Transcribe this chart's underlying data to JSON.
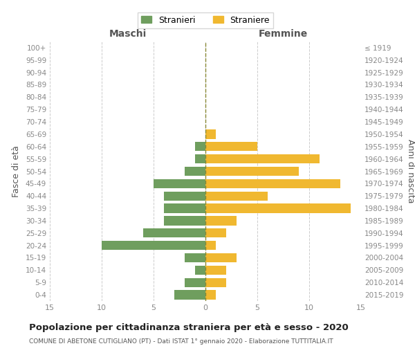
{
  "age_groups": [
    "0-4",
    "5-9",
    "10-14",
    "15-19",
    "20-24",
    "25-29",
    "30-34",
    "35-39",
    "40-44",
    "45-49",
    "50-54",
    "55-59",
    "60-64",
    "65-69",
    "70-74",
    "75-79",
    "80-84",
    "85-89",
    "90-94",
    "95-99",
    "100+"
  ],
  "birth_years": [
    "2015-2019",
    "2010-2014",
    "2005-2009",
    "2000-2004",
    "1995-1999",
    "1990-1994",
    "1985-1989",
    "1980-1984",
    "1975-1979",
    "1970-1974",
    "1965-1969",
    "1960-1964",
    "1955-1959",
    "1950-1954",
    "1945-1949",
    "1940-1944",
    "1935-1939",
    "1930-1934",
    "1925-1929",
    "1920-1924",
    "≤ 1919"
  ],
  "maschi": [
    3,
    2,
    1,
    2,
    10,
    6,
    4,
    4,
    4,
    5,
    2,
    1,
    1,
    0,
    0,
    0,
    0,
    0,
    0,
    0,
    0
  ],
  "femmine": [
    1,
    2,
    2,
    3,
    1,
    2,
    3,
    14,
    6,
    13,
    9,
    11,
    5,
    1,
    0,
    0,
    0,
    0,
    0,
    0,
    0
  ],
  "maschi_color": "#6f9e5e",
  "femmine_color": "#f0b830",
  "title": "Popolazione per cittadinanza straniera per età e sesso - 2020",
  "subtitle": "COMUNE DI ABETONE CUTIGLIANO (PT) - Dati ISTAT 1° gennaio 2020 - Elaborazione TUTTITALIA.IT",
  "ylabel_left": "Fasce di età",
  "ylabel_right": "Anni di nascita",
  "xlabel_left": "Maschi",
  "xlabel_right": "Femmine",
  "legend_maschi": "Stranieri",
  "legend_femmine": "Straniere",
  "xlim": 15,
  "background_color": "#ffffff",
  "grid_color": "#cccccc",
  "tick_color": "#888888",
  "bar_height": 0.75
}
